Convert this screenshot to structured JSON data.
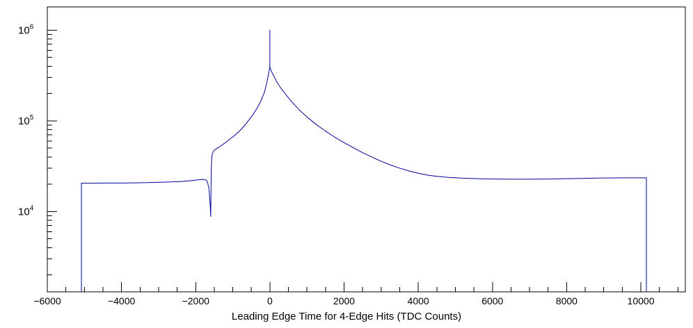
{
  "chart_data": {
    "type": "line",
    "title": "",
    "xlabel": "Leading Edge Time for 4-Edge Hits (TDC Counts)",
    "ylabel": "",
    "x_scale": "linear",
    "y_scale": "log",
    "xlim": [
      -6000,
      11200
    ],
    "ylim": [
      1300,
      1800000
    ],
    "grid": false,
    "legend": "none",
    "line_color": "#000099",
    "x_ticks": [
      {
        "value": -6000,
        "label": "−6000"
      },
      {
        "value": -4000,
        "label": "−4000"
      },
      {
        "value": -2000,
        "label": "−2000"
      },
      {
        "value": 0,
        "label": "0"
      },
      {
        "value": 2000,
        "label": "2000"
      },
      {
        "value": 4000,
        "label": "4000"
      },
      {
        "value": 6000,
        "label": "6000"
      },
      {
        "value": 8000,
        "label": "8000"
      },
      {
        "value": 10000,
        "label": "10000"
      }
    ],
    "x_minor_step": 500,
    "y_ticks": [
      {
        "value": 10000,
        "base": "10",
        "exp": "4"
      },
      {
        "value": 100000,
        "base": "10",
        "exp": "5"
      },
      {
        "value": 1000000,
        "base": "10",
        "exp": "6"
      }
    ],
    "y_minor": true,
    "features": {
      "baseline_left_level": 20500,
      "baseline_right_level": 23300,
      "left_edge_x": -5080,
      "right_edge_x": 10150,
      "dip_x": -1600,
      "dip_min": 8800,
      "peak_x": 0,
      "peak_curve_level": 395000,
      "peak_spike_level": 1000000
    },
    "points": [
      [
        -5080,
        1300
      ],
      [
        -5080,
        20500
      ],
      [
        -4800,
        20500
      ],
      [
        -4400,
        20600
      ],
      [
        -4000,
        20600
      ],
      [
        -3600,
        20700
      ],
      [
        -3200,
        20900
      ],
      [
        -2800,
        21100
      ],
      [
        -2400,
        21400
      ],
      [
        -2100,
        21900
      ],
      [
        -1900,
        22400
      ],
      [
        -1800,
        22600
      ],
      [
        -1720,
        22200
      ],
      [
        -1680,
        21000
      ],
      [
        -1640,
        17500
      ],
      [
        -1610,
        12000
      ],
      [
        -1595,
        8800
      ],
      [
        -1580,
        30000
      ],
      [
        -1560,
        42000
      ],
      [
        -1520,
        46500
      ],
      [
        -1450,
        49000
      ],
      [
        -1350,
        52000
      ],
      [
        -1250,
        55500
      ],
      [
        -1150,
        59500
      ],
      [
        -1050,
        64000
      ],
      [
        -950,
        69000
      ],
      [
        -850,
        75000
      ],
      [
        -750,
        82500
      ],
      [
        -650,
        92000
      ],
      [
        -550,
        104000
      ],
      [
        -450,
        118000
      ],
      [
        -350,
        137000
      ],
      [
        -250,
        163000
      ],
      [
        -150,
        205000
      ],
      [
        -80,
        265000
      ],
      [
        -30,
        340000
      ],
      [
        0,
        395000
      ],
      [
        0,
        1000000
      ],
      [
        0,
        395000
      ],
      [
        30,
        360000
      ],
      [
        100,
        315000
      ],
      [
        200,
        262000
      ],
      [
        300,
        228000
      ],
      [
        450,
        190000
      ],
      [
        600,
        160000
      ],
      [
        800,
        131000
      ],
      [
        1000,
        110000
      ],
      [
        1250,
        91000
      ],
      [
        1500,
        77000
      ],
      [
        1750,
        66000
      ],
      [
        2000,
        57500
      ],
      [
        2250,
        50500
      ],
      [
        2500,
        44500
      ],
      [
        2750,
        39800
      ],
      [
        3000,
        35800
      ],
      [
        3250,
        32600
      ],
      [
        3500,
        30000
      ],
      [
        3750,
        28000
      ],
      [
        4000,
        26400
      ],
      [
        4250,
        25200
      ],
      [
        4500,
        24400
      ],
      [
        4800,
        23800
      ],
      [
        5200,
        23300
      ],
      [
        5600,
        23000
      ],
      [
        6000,
        22800
      ],
      [
        6500,
        22700
      ],
      [
        7000,
        22700
      ],
      [
        7500,
        22800
      ],
      [
        8000,
        23000
      ],
      [
        8500,
        23200
      ],
      [
        9000,
        23400
      ],
      [
        9500,
        23500
      ],
      [
        10000,
        23500
      ],
      [
        10150,
        23500
      ],
      [
        10150,
        1300
      ]
    ]
  }
}
